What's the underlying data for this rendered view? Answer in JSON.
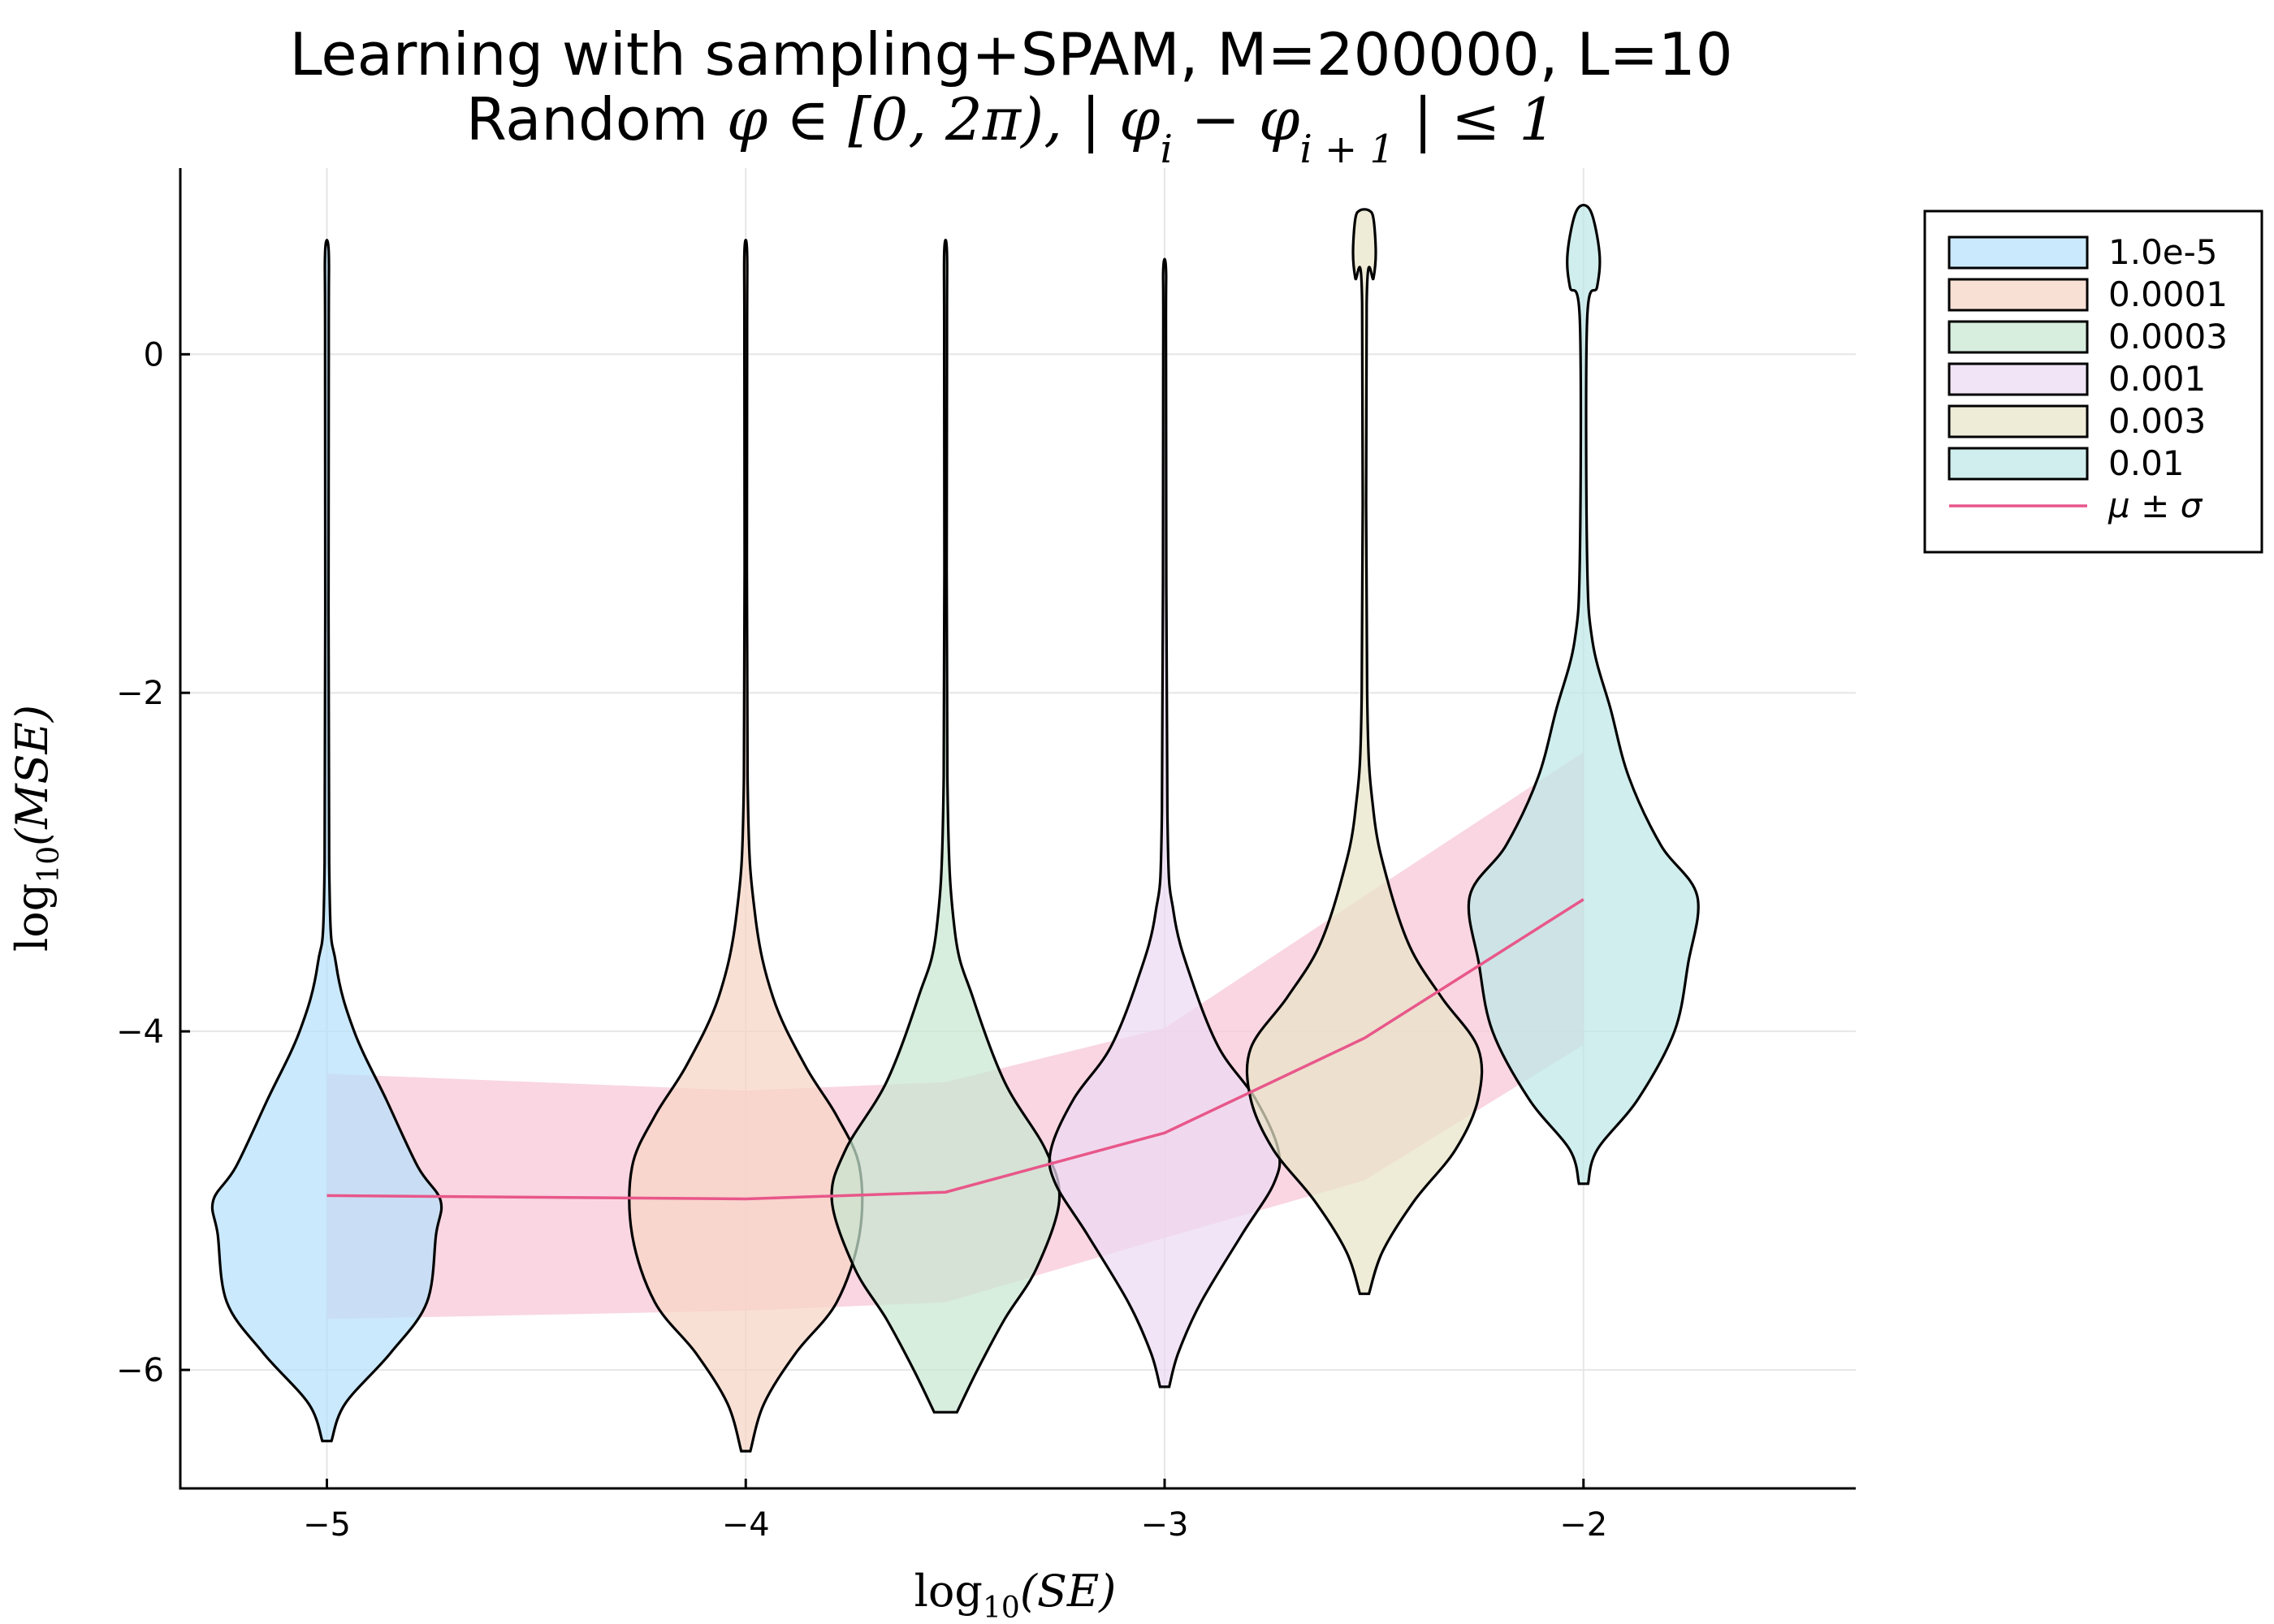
{
  "chart_data": {
    "type": "violin",
    "title": "Learning with sampling+SPAM, M=200000, L=10",
    "subtitle": {
      "prefix": "Random ",
      "math": "φ ∈ [0, 2π), | φ",
      "sub_i": "i",
      "minus": " − φ",
      "sub_i1": "i + 1",
      "suffix": " | ≤ 1"
    },
    "xlabel": {
      "base": "log",
      "sub": "10",
      "arg": "(SE)"
    },
    "ylabel": {
      "base": "log",
      "sub": "10",
      "arg": "(MSE)"
    },
    "xlim": [
      -5.35,
      -1.35
    ],
    "ylim": [
      -6.7,
      1.1
    ],
    "x_ticks": [
      -5,
      -4,
      -3,
      -2
    ],
    "x_tick_labels": [
      "−5",
      "−4",
      "−3",
      "−2"
    ],
    "y_ticks": [
      -6,
      -4,
      -2,
      0
    ],
    "y_tick_labels": [
      "−6",
      "−4",
      "−2",
      "0"
    ],
    "grid": true,
    "legend_position": "outer top-right",
    "series": [
      {
        "name": "1.0e-5",
        "x": -5,
        "color": "#b6e0fb",
        "profile": [
          [
            -6.42,
            0.01
          ],
          [
            -6.2,
            0.04
          ],
          [
            -5.9,
            0.14
          ],
          [
            -5.6,
            0.22
          ],
          [
            -5.2,
            0.24
          ],
          [
            -5.0,
            0.25
          ],
          [
            -4.8,
            0.2
          ],
          [
            -4.4,
            0.13
          ],
          [
            -4.0,
            0.06
          ],
          [
            -3.6,
            0.02
          ],
          [
            -3.0,
            0.005
          ],
          [
            0.0,
            0.004
          ],
          [
            0.6,
            0.004
          ]
        ]
      },
      {
        "name": "0.0001",
        "x": -4,
        "color": "#f6d4c5",
        "profile": [
          [
            -6.48,
            0.01
          ],
          [
            -6.2,
            0.04
          ],
          [
            -5.9,
            0.11
          ],
          [
            -5.6,
            0.2
          ],
          [
            -5.2,
            0.25
          ],
          [
            -4.8,
            0.25
          ],
          [
            -4.5,
            0.2
          ],
          [
            -4.2,
            0.13
          ],
          [
            -3.8,
            0.06
          ],
          [
            -3.3,
            0.02
          ],
          [
            -2.5,
            0.004
          ],
          [
            0.0,
            0.003
          ],
          [
            0.6,
            0.003
          ]
        ]
      },
      {
        "name": "0.0003",
        "x": -3.523,
        "color": "#c7e6d0",
        "profile": [
          [
            -6.25,
            0.025
          ],
          [
            -6.0,
            0.07
          ],
          [
            -5.7,
            0.13
          ],
          [
            -5.4,
            0.2
          ],
          [
            -5.0,
            0.25
          ],
          [
            -4.7,
            0.22
          ],
          [
            -4.3,
            0.13
          ],
          [
            -3.8,
            0.06
          ],
          [
            -3.4,
            0.02
          ],
          [
            -2.5,
            0.004
          ],
          [
            0.0,
            0.003
          ],
          [
            0.6,
            0.003
          ]
        ]
      },
      {
        "name": "0.001",
        "x": -3,
        "color": "#ecd9f2",
        "profile": [
          [
            -6.1,
            0.01
          ],
          [
            -5.9,
            0.03
          ],
          [
            -5.6,
            0.08
          ],
          [
            -5.2,
            0.17
          ],
          [
            -4.9,
            0.24
          ],
          [
            -4.7,
            0.25
          ],
          [
            -4.4,
            0.2
          ],
          [
            -4.1,
            0.12
          ],
          [
            -3.7,
            0.06
          ],
          [
            -3.3,
            0.02
          ],
          [
            -2.7,
            0.006
          ],
          [
            0.0,
            0.003
          ],
          [
            0.5,
            0.003
          ]
        ]
      },
      {
        "name": "0.003",
        "x": -2.523,
        "color": "#e8e3c8",
        "profile": [
          [
            -5.55,
            0.01
          ],
          [
            -5.3,
            0.04
          ],
          [
            -5.0,
            0.11
          ],
          [
            -4.7,
            0.2
          ],
          [
            -4.4,
            0.25
          ],
          [
            -4.1,
            0.25
          ],
          [
            -3.8,
            0.17
          ],
          [
            -3.5,
            0.1
          ],
          [
            -3.1,
            0.05
          ],
          [
            -2.7,
            0.02
          ],
          [
            -2.0,
            0.006
          ],
          [
            0.3,
            0.005
          ],
          [
            0.45,
            0.02
          ],
          [
            0.6,
            0.025
          ],
          [
            0.8,
            0.02
          ],
          [
            0.85,
            0.01
          ]
        ]
      },
      {
        "name": "0.01",
        "x": -2,
        "color": "#bde8e6",
        "profile": [
          [
            -4.9,
            0.01
          ],
          [
            -4.7,
            0.03
          ],
          [
            -4.4,
            0.12
          ],
          [
            -4.0,
            0.2
          ],
          [
            -3.6,
            0.23
          ],
          [
            -3.2,
            0.25
          ],
          [
            -2.9,
            0.17
          ],
          [
            -2.5,
            0.1
          ],
          [
            -2.1,
            0.06
          ],
          [
            -1.7,
            0.02
          ],
          [
            -1.2,
            0.008
          ],
          [
            0.2,
            0.008
          ],
          [
            0.4,
            0.03
          ],
          [
            0.6,
            0.035
          ],
          [
            0.85,
            0.015
          ]
        ]
      }
    ],
    "mean_std": {
      "name": "μ ± σ",
      "color": "#e8578a",
      "band_color": "#f7c8d7",
      "x": [
        -5,
        -4,
        -3.523,
        -3,
        -2.523,
        -2
      ],
      "mean": [
        -4.97,
        -4.99,
        -4.95,
        -4.6,
        -4.04,
        -3.22
      ],
      "lower": [
        -5.7,
        -5.65,
        -5.6,
        -5.22,
        -4.88,
        -4.08
      ],
      "upper": [
        -4.25,
        -4.35,
        -4.3,
        -3.98,
        -3.2,
        -2.35
      ]
    }
  }
}
